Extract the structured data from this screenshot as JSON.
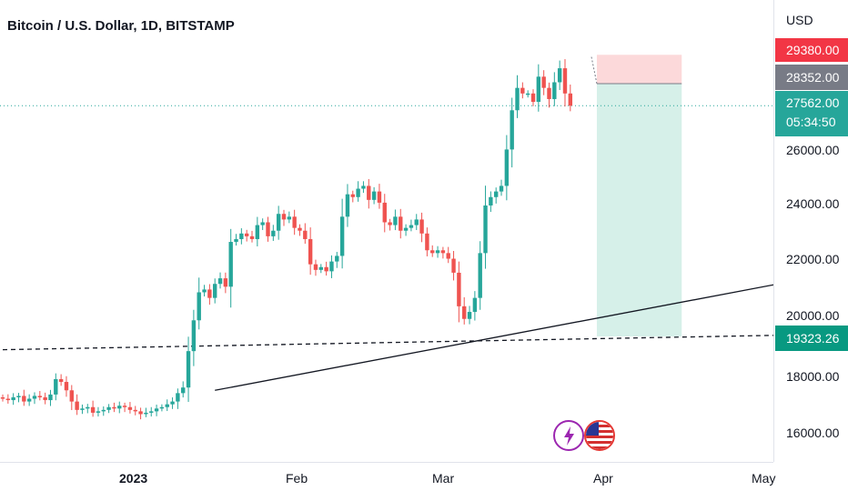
{
  "header": {
    "title": "Bitcoin / U.S. Dollar, 1D, BITSTAMP"
  },
  "axis": {
    "currency": "USD",
    "ticks": [
      "26000.00",
      "24000.00",
      "22000.00",
      "20000.00",
      "18000.00",
      "16000.00"
    ],
    "time_labels": [
      "2023",
      "Feb",
      "Mar",
      "Apr",
      "May"
    ]
  },
  "badges": {
    "stop": "29380.00",
    "entry": "28352.00",
    "last": "27562.00",
    "countdown": "05:34:50",
    "target": "19323.26"
  },
  "colors": {
    "up": "#26a69a",
    "down": "#ef5350",
    "stop_badge": "#f23645",
    "entry_badge": "#787b86",
    "target_badge": "#089981",
    "risk_zone": "#fbd2d4",
    "reward_zone": "#d4efe8",
    "lightning_icon": "#9c27b0"
  },
  "icons": [
    "lightning-icon",
    "us-flag-icon"
  ],
  "chart_data": {
    "type": "candlestick",
    "title": "Bitcoin / U.S. Dollar, 1D, BITSTAMP",
    "symbol": "BTCUSD",
    "exchange": "BITSTAMP",
    "interval": "1D",
    "currency": "USD",
    "ylim": [
      15300,
      30800
    ],
    "x_range": [
      "2022-12-02",
      "2023-05-07"
    ],
    "anchors": {
      "start_date": "2022-12-02",
      "start_price": 17150
    },
    "closes": [
      17100,
      17050,
      17150,
      17200,
      17000,
      17100,
      17200,
      17150,
      17050,
      17250,
      17800,
      17700,
      17400,
      17000,
      16700,
      16750,
      16800,
      16600,
      16650,
      16700,
      16800,
      16750,
      16850,
      16800,
      16700,
      16650,
      16550,
      16600,
      16650,
      16750,
      16800,
      16900,
      17000,
      17300,
      17500,
      18800,
      19900,
      20900,
      21000,
      20700,
      21200,
      21400,
      21100,
      22700,
      22800,
      23000,
      22900,
      22800,
      23300,
      23400,
      22900,
      23100,
      23700,
      23500,
      23600,
      23200,
      23100,
      22800,
      21900,
      21700,
      21800,
      21650,
      22000,
      22200,
      23600,
      24400,
      24300,
      24600,
      24700,
      24200,
      24500,
      24100,
      23400,
      23300,
      23600,
      23100,
      23200,
      23300,
      23500,
      23000,
      22400,
      22300,
      22400,
      22300,
      22100,
      21600,
      20400,
      19950,
      20200,
      20700,
      22300,
      24000,
      24300,
      24500,
      24700,
      26000,
      27400,
      28200,
      28000,
      28000,
      27700,
      28600,
      28200,
      27800,
      28400,
      28900,
      28000,
      27562
    ],
    "risk_reward": {
      "start_date": "2023-03-24",
      "end_date": "2023-04-09",
      "entry": 28352.0,
      "stop": 29380.0,
      "target": 19323.26
    },
    "trendlines": [
      {
        "style": "solid",
        "from": [
          "2023-01-11",
          17400
        ],
        "to": [
          "2023-05-07",
          21550
        ]
      },
      {
        "style": "dashed",
        "from": [
          "2022-12-02",
          18850
        ],
        "to": [
          "2023-05-07",
          19400
        ]
      }
    ],
    "last_price": 27562.0,
    "countdown": "05:34:50"
  }
}
